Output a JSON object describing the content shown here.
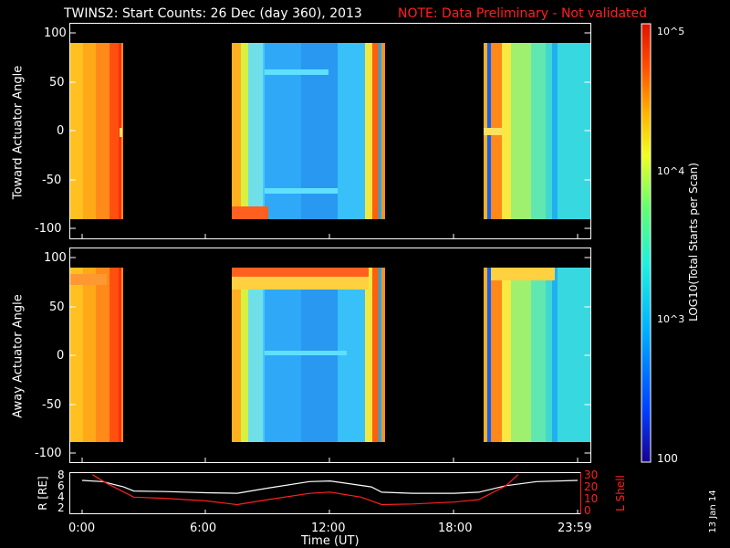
{
  "header": {
    "title": "TWINS2: Start Counts: 26 Dec (day 360), 2013",
    "note": "NOTE: Data Preliminary - Not validated",
    "note_color": "#ff2020"
  },
  "stamp": "13 Jan 14",
  "chart_data": [
    {
      "type": "heatmap",
      "ylabel": "Toward Actuator Angle",
      "ylim": [
        -110,
        110
      ],
      "yticks": [
        100,
        50,
        0,
        -50,
        -100
      ],
      "angle_range": [
        -90,
        90
      ],
      "xlim_hours": [
        0,
        24
      ],
      "data_blocks_hours": [
        [
          0,
          2.5
        ],
        [
          7.4,
          14.5
        ],
        [
          19.1,
          24
        ]
      ],
      "levels": {
        "block1": "orange-red (~3e4 - 6e4), darker red near 2.2 h",
        "block2": "cyan/light-blue (~1e3 - 2e3) from 8.5 h to 14 h, orange edges",
        "block3": "orange at start (19.1-19.6 h), green/cyan (~2e3 - 5e3) afterwards"
      }
    },
    {
      "type": "heatmap",
      "ylabel": "Away Actuator Angle",
      "ylim": [
        -110,
        110
      ],
      "yticks": [
        100,
        50,
        0,
        -50,
        -100
      ],
      "angle_range": [
        -90,
        90
      ],
      "xlim_hours": [
        0,
        24
      ],
      "data_blocks_hours": [
        [
          0,
          2.5
        ],
        [
          7.4,
          14.5
        ],
        [
          19.1,
          24
        ]
      ],
      "levels": {
        "block1": "orange-red (~3e4 - 6e4)",
        "block2": "cyan/light-blue, bright red band near +80 deg",
        "block3": "orange at start, green/cyan afterwards"
      }
    },
    {
      "type": "line",
      "ylabel": "R [RE]",
      "y2label": "L Shell",
      "y_ticks": [
        2,
        4,
        6,
        8
      ],
      "y2_ticks": [
        0,
        10,
        20,
        30
      ],
      "xlabel": "Time (UT)",
      "x_ticks": [
        "0:00",
        "6:00",
        "12:00",
        "18:00",
        "23:59"
      ],
      "series": [
        {
          "axis": "R",
          "color": "#ffffff",
          "x": [
            0,
            1,
            2,
            2.5,
            4,
            6,
            7.5,
            9,
            11,
            12,
            14,
            14.5,
            16,
            18,
            19.2,
            20.5,
            22,
            23.98
          ],
          "y": [
            7.1,
            6.9,
            6.0,
            5.3,
            5.2,
            5.0,
            4.9,
            5.8,
            6.9,
            7.0,
            6.0,
            5.1,
            4.9,
            4.9,
            5.1,
            6.2,
            6.9,
            7.1
          ]
        },
        {
          "axis": "L",
          "color": "#ff2020",
          "x": [
            0.5,
            1.2,
            2.5,
            4,
            6,
            7.5,
            9,
            11,
            12,
            13.5,
            14.5,
            16,
            18,
            19.2,
            20.5,
            21.1
          ],
          "y": [
            31,
            24,
            13,
            12,
            10,
            7,
            11,
            16,
            17,
            13,
            7,
            7.5,
            9,
            11,
            22,
            31
          ]
        }
      ]
    }
  ],
  "colorbar": {
    "label": "LOG10(Total Starts per Scan)",
    "ticks": [
      "10^5",
      "10^4",
      "10^3",
      "100"
    ]
  }
}
